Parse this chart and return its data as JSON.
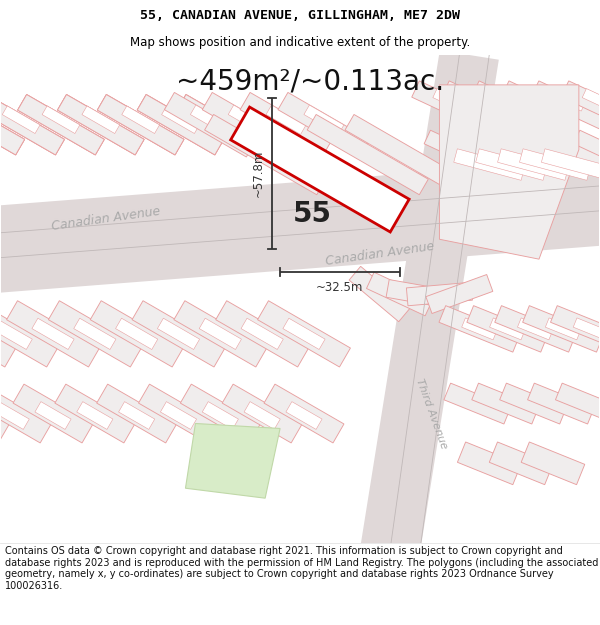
{
  "title_line1": "55, CANADIAN AVENUE, GILLINGHAM, ME7 2DW",
  "title_line2": "Map shows position and indicative extent of the property.",
  "area_text": "~459m²/~0.113ac.",
  "dim_vertical": "~57.8m",
  "dim_horizontal": "~32.5m",
  "number_label": "55",
  "street_upper": "Canadian Avenue",
  "street_lower": "Canadian Avenue",
  "street_right": "Third Avenue",
  "footer_text": "Contains OS data © Crown copyright and database right 2021. This information is subject to Crown copyright and database rights 2023 and is reproduced with the permission of HM Land Registry. The polygons (including the associated geometry, namely x, y co-ordinates) are subject to Crown copyright and database rights 2023 Ordnance Survey 100026316.",
  "map_bg": "#f9f5f5",
  "building_fill": "#f0eded",
  "building_stroke": "#e8a0a0",
  "road_fill": "#e0d8d8",
  "road_stroke": "#d0c8c8",
  "highlight_stroke": "#cc0000",
  "highlight_fill": "#ffffff",
  "road_label_color": "#aaaaaa",
  "dim_color": "#333333",
  "green_fill": "#d8ecc8",
  "green_stroke": "#c0d8a8",
  "title_fontsize": 9.5,
  "subtitle_fontsize": 8.5,
  "area_fontsize": 20,
  "footer_fontsize": 7,
  "ang": 30
}
